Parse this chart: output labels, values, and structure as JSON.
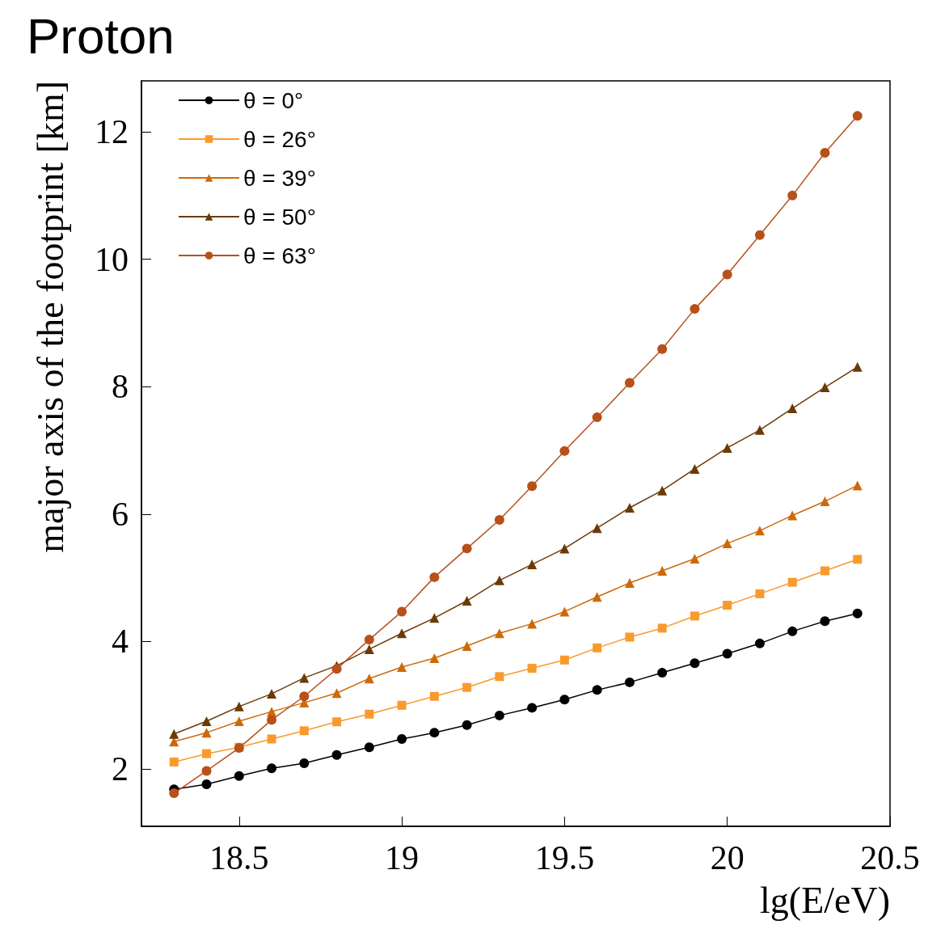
{
  "chart_data": {
    "type": "line",
    "title": "Proton",
    "xlabel": "lg(E/eV)",
    "ylabel": "major axis of the footprint [km]",
    "x": [
      18.3,
      18.4,
      18.5,
      18.6,
      18.7,
      18.8,
      18.9,
      19.0,
      19.1,
      19.2,
      19.3,
      19.4,
      19.5,
      19.6,
      19.7,
      19.8,
      19.9,
      20.0,
      20.1,
      20.2,
      20.3,
      20.4
    ],
    "series": [
      {
        "name": "θ = 0°",
        "color": "#000000",
        "marker": "circle",
        "values": [
          1.68,
          1.76,
          1.89,
          2.01,
          2.09,
          2.22,
          2.34,
          2.47,
          2.57,
          2.69,
          2.84,
          2.96,
          3.09,
          3.24,
          3.36,
          3.51,
          3.66,
          3.81,
          3.97,
          4.16,
          4.32,
          4.44
        ]
      },
      {
        "name": "θ = 26°",
        "color": "#f99a2e",
        "marker": "square",
        "values": [
          2.11,
          2.24,
          2.34,
          2.47,
          2.6,
          2.74,
          2.86,
          3.0,
          3.14,
          3.28,
          3.45,
          3.58,
          3.71,
          3.9,
          4.07,
          4.21,
          4.4,
          4.57,
          4.75,
          4.93,
          5.11,
          5.29
        ]
      },
      {
        "name": "θ = 39°",
        "color": "#cc6a0a",
        "marker": "triangle",
        "values": [
          2.43,
          2.57,
          2.75,
          2.9,
          3.04,
          3.19,
          3.42,
          3.6,
          3.74,
          3.93,
          4.13,
          4.28,
          4.47,
          4.7,
          4.92,
          5.11,
          5.3,
          5.54,
          5.74,
          5.98,
          6.2,
          6.45
        ]
      },
      {
        "name": "θ = 50°",
        "color": "#6b3a07",
        "marker": "triangle",
        "values": [
          2.55,
          2.75,
          2.98,
          3.18,
          3.43,
          3.62,
          3.88,
          4.13,
          4.37,
          4.64,
          4.96,
          5.21,
          5.46,
          5.78,
          6.1,
          6.37,
          6.71,
          7.04,
          7.32,
          7.66,
          7.99,
          8.31
        ]
      },
      {
        "name": "θ = 63°",
        "color": "#b8501a",
        "marker": "circle",
        "values": [
          1.62,
          1.97,
          2.33,
          2.77,
          3.14,
          3.57,
          4.03,
          4.47,
          5.01,
          5.46,
          5.91,
          6.44,
          6.99,
          7.52,
          8.06,
          8.59,
          9.22,
          9.76,
          10.38,
          11.0,
          11.67,
          12.25
        ]
      }
    ],
    "xlim": [
      18.2,
      20.5
    ],
    "xticks": [
      18.5,
      19,
      19.5,
      20,
      20.5
    ],
    "ylim": [
      1.1,
      12.8
    ],
    "yticks": [
      2,
      4,
      6,
      8,
      10,
      12
    ],
    "grid": false,
    "legend": "top left",
    "line_style": "solid"
  }
}
